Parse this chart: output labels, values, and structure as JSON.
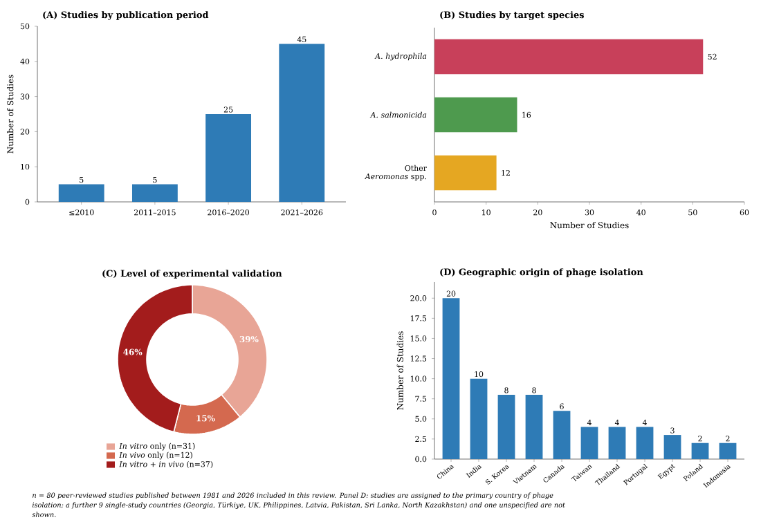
{
  "chart_data": [
    {
      "type": "bar",
      "title": "(A) Studies by publication period",
      "ylabel": "Number of Studies",
      "categories": [
        "≤2010",
        "2011–2015",
        "2016–2020",
        "2021–2026"
      ],
      "values": [
        5,
        5,
        25,
        45
      ],
      "color": "#2e7bb6",
      "ylim": [
        0,
        50
      ],
      "yticks": [
        0,
        10,
        20,
        30,
        40,
        50
      ],
      "data_labels": true
    },
    {
      "type": "bar",
      "orientation": "horizontal",
      "title": "(B) Studies by target species",
      "xlabel": "Number of Studies",
      "categories": [
        "*A. hydrophila*",
        "*A. salmonicida*",
        "Other *Aeromonas* spp."
      ],
      "values": [
        52,
        16,
        12
      ],
      "colors": [
        "#c8405a",
        "#4e9a4e",
        "#e5a722"
      ],
      "xlim": [
        0,
        60
      ],
      "xticks": [
        0,
        10,
        20,
        30,
        40,
        50,
        60
      ],
      "data_labels": true
    },
    {
      "type": "donut",
      "title": "(C) Level of experimental validation",
      "categories": [
        "*In vitro* only (n=31)",
        "*In vivo* only (n=12)",
        "*In vitro* + *in vivo* (n=37)"
      ],
      "values": [
        39,
        15,
        46
      ],
      "colors": [
        "#e8a596",
        "#d4694f",
        "#a31c1c"
      ],
      "value_labels": [
        "39%",
        "15%",
        "46%"
      ],
      "legend": "bottom"
    },
    {
      "type": "bar",
      "title": "(D) Geographic origin of phage isolation",
      "ylabel": "Number of Studies",
      "categories": [
        "China",
        "India",
        "S. Korea",
        "Vietnam",
        "Canada",
        "Taiwan",
        "Thailand",
        "Portugal",
        "Egypt",
        "Poland",
        "Indonesia"
      ],
      "values": [
        20,
        10,
        8,
        8,
        6,
        4,
        4,
        4,
        3,
        2,
        2
      ],
      "color": "#2e7bb6",
      "ylim": [
        0,
        22
      ],
      "yticks": [
        {
          "value": 0,
          "label": "0.0"
        },
        {
          "value": 2.5,
          "label": "2.5"
        },
        {
          "value": 5,
          "label": "5.0"
        },
        {
          "value": 7.5,
          "label": "7.5"
        },
        {
          "value": 10,
          "label": "10.0"
        },
        {
          "value": 12.5,
          "label": "12.5"
        },
        {
          "value": 15,
          "label": "15.0"
        },
        {
          "value": 17.5,
          "label": "17.5"
        },
        {
          "value": 20,
          "label": "20.0"
        }
      ],
      "data_labels": true,
      "annotations": [
        "n = 80 peer-reviewed studies published between 1981 and 2026 included in this review. Panel D: studies are assigned to the primary country of phage isolation; a further 9 single-study countries (Georgia, Türkiye, UK, Philippines, Latvia, Pakistan, Sri Lanka, North Kazakhstan) and one unspecified are not shown."
      ]
    }
  ]
}
